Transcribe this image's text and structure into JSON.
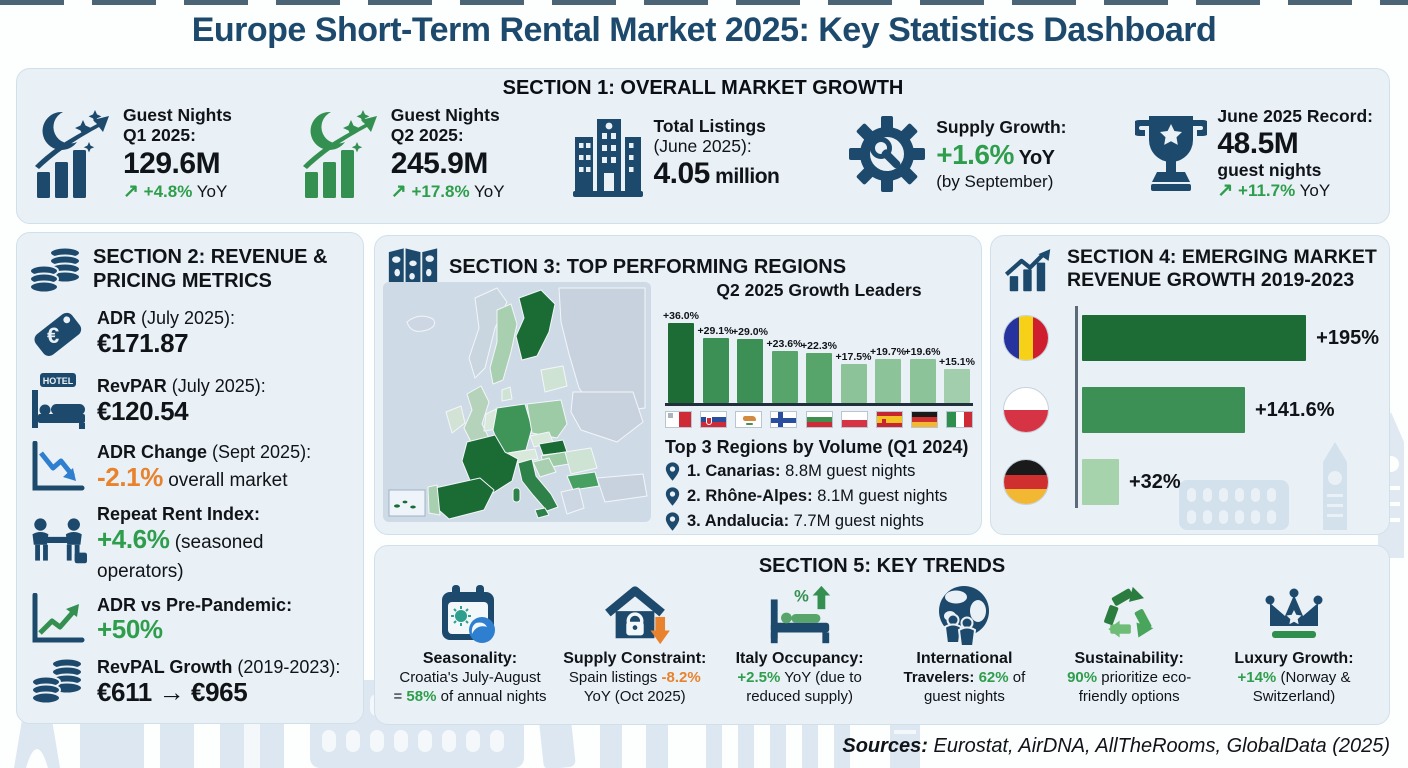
{
  "page": {
    "title": "Europe Short-Term Rental Market 2025: Key Statistics Dashboard",
    "sources": {
      "label": "Sources:",
      "text": " Eurostat, AirDNA, AllTheRooms, GlobalData (2025)"
    }
  },
  "colors": {
    "navy": "#1d4a6c",
    "green": "#2f9e4c",
    "dark_green": "#1d6b35",
    "orange": "#e8822d",
    "panel_bg": "#e9f0f6"
  },
  "section1": {
    "title": "SECTION 1: OVERALL MARKET GROWTH",
    "stats": [
      {
        "label1": "Guest Nights",
        "label2": "Q1 2025:",
        "value": "129.6M",
        "arrow": "↗",
        "delta": "+4.8%",
        "suffix": " YoY"
      },
      {
        "label1": "Guest Nights",
        "label2": "Q2 2025:",
        "value": "245.9M",
        "arrow": "↗",
        "delta": "+17.8%",
        "suffix": " YoY"
      },
      {
        "label1": "Total Listings",
        "label2": "(June 2025):",
        "value": "4.05",
        "suffix": " million"
      },
      {
        "label1": "Supply Growth:",
        "value": "+1.6%",
        "suffix": " YoY",
        "note": "(by September)"
      },
      {
        "label1": "June 2025 Record:",
        "value": "48.5M",
        "label2": "guest nights",
        "arrow": "↗",
        "delta": "+11.7%",
        "suffix": " YoY"
      }
    ]
  },
  "section2": {
    "title1": "SECTION 2: REVENUE &",
    "title2": "PRICING METRICS",
    "hotel_badge": "HOTEL",
    "euro": "€",
    "rows": [
      {
        "label_b": "ADR",
        "label_r": " (July 2025):",
        "value": "€171.87"
      },
      {
        "label_b": "RevPAR",
        "label_r": " (July 2025):",
        "value": "€120.54"
      },
      {
        "label_b": "ADR Change",
        "label_r": " (Sept 2025):",
        "accent": "-2.1%",
        "rest": " overall market"
      },
      {
        "label_b": "Repeat Rent Index:",
        "label_r": "",
        "accent": "+4.6%",
        "rest": " (seasoned operators)"
      },
      {
        "label_b": "ADR vs Pre-Pandemic:",
        "label_r": "",
        "accent": "+50%",
        "rest": ""
      },
      {
        "label_b": "RevPAL Growth",
        "label_r": " (2019-2023):",
        "value": "€611 → €965"
      }
    ]
  },
  "section3": {
    "title": "SECTION 3: TOP PERFORMING REGIONS",
    "chart_title": "Q2 2025 Growth Leaders",
    "top3_title": "Top 3 Regions by Volume (Q1 2024)",
    "top3": [
      {
        "name": "1. Canarias:",
        "rest": " 8.8M guest nights"
      },
      {
        "name": "2. Rhône-Alpes:",
        "rest": " 8.1M guest nights"
      },
      {
        "name": "3. Andalucia:",
        "rest": " 7.7M guest nights"
      }
    ]
  },
  "section4": {
    "title1": "SECTION 4: EMERGING MARKET",
    "title2": "REVENUE GROWTH 2019-2023"
  },
  "section5": {
    "title": "SECTION 5: KEY TRENDS",
    "items": [
      {
        "title": "Seasonality:",
        "line1": "Croatia's July-August",
        "pre": "= ",
        "accent": "58%",
        "post": " of annual nights"
      },
      {
        "title": "Supply Constraint:",
        "pre": "Spain listings ",
        "accent": "-8.2%",
        "line2": "YoY (Oct 2025)"
      },
      {
        "title": "Italy Occupancy:",
        "accent": "+2.5%",
        "post": " YoY (due to",
        "line2": "reduced supply)"
      },
      {
        "title": "International",
        "title2": "Travelers: ",
        "accent": "62%",
        "post": " of",
        "line2": "guest nights"
      },
      {
        "title": "Sustainability:",
        "accent": "90%",
        "post": " prioritize eco-",
        "line2": "friendly options"
      },
      {
        "title": "Luxury Growth:",
        "accent": "+14%",
        "post": " (Norway &",
        "line2": "Switzerland)"
      }
    ]
  },
  "chart_data": [
    {
      "type": "bar",
      "title": "Q2 2025 Growth Leaders",
      "categories": [
        "Malta",
        "Slovakia",
        "Cyprus",
        "Finland",
        "Bulgaria",
        "Poland",
        "Spain",
        "Germany",
        "Italy"
      ],
      "values": [
        36.0,
        29.1,
        29.0,
        23.6,
        22.3,
        17.5,
        19.7,
        19.6,
        15.1
      ],
      "labels": [
        "+36.0%",
        "+29.1%",
        "+29.0%",
        "+23.6%",
        "+22.3%",
        "+17.5%",
        "+19.7%",
        "+19.6%",
        "+15.1%"
      ],
      "xlabel": "",
      "ylabel": "",
      "ylim": [
        0,
        36
      ],
      "grid": false,
      "legend": false,
      "bar_colors": [
        "#1d6b35",
        "#3d9055",
        "#3d9055",
        "#57a56b",
        "#57a56b",
        "#8cc398",
        "#8cc398",
        "#8cc398",
        "#a2cead"
      ]
    },
    {
      "type": "bar",
      "orientation": "horizontal",
      "title": "Emerging Market Revenue Growth 2019-2023",
      "categories": [
        "Romania",
        "Poland",
        "Germany"
      ],
      "values": [
        195,
        141.6,
        32
      ],
      "labels": [
        "+195%",
        "+141.6%",
        "+32%"
      ],
      "xlim": [
        0,
        195
      ],
      "grid": false,
      "legend": false,
      "bar_colors": [
        "#1d6b35",
        "#3d9055",
        "#a6d2ac"
      ]
    }
  ]
}
